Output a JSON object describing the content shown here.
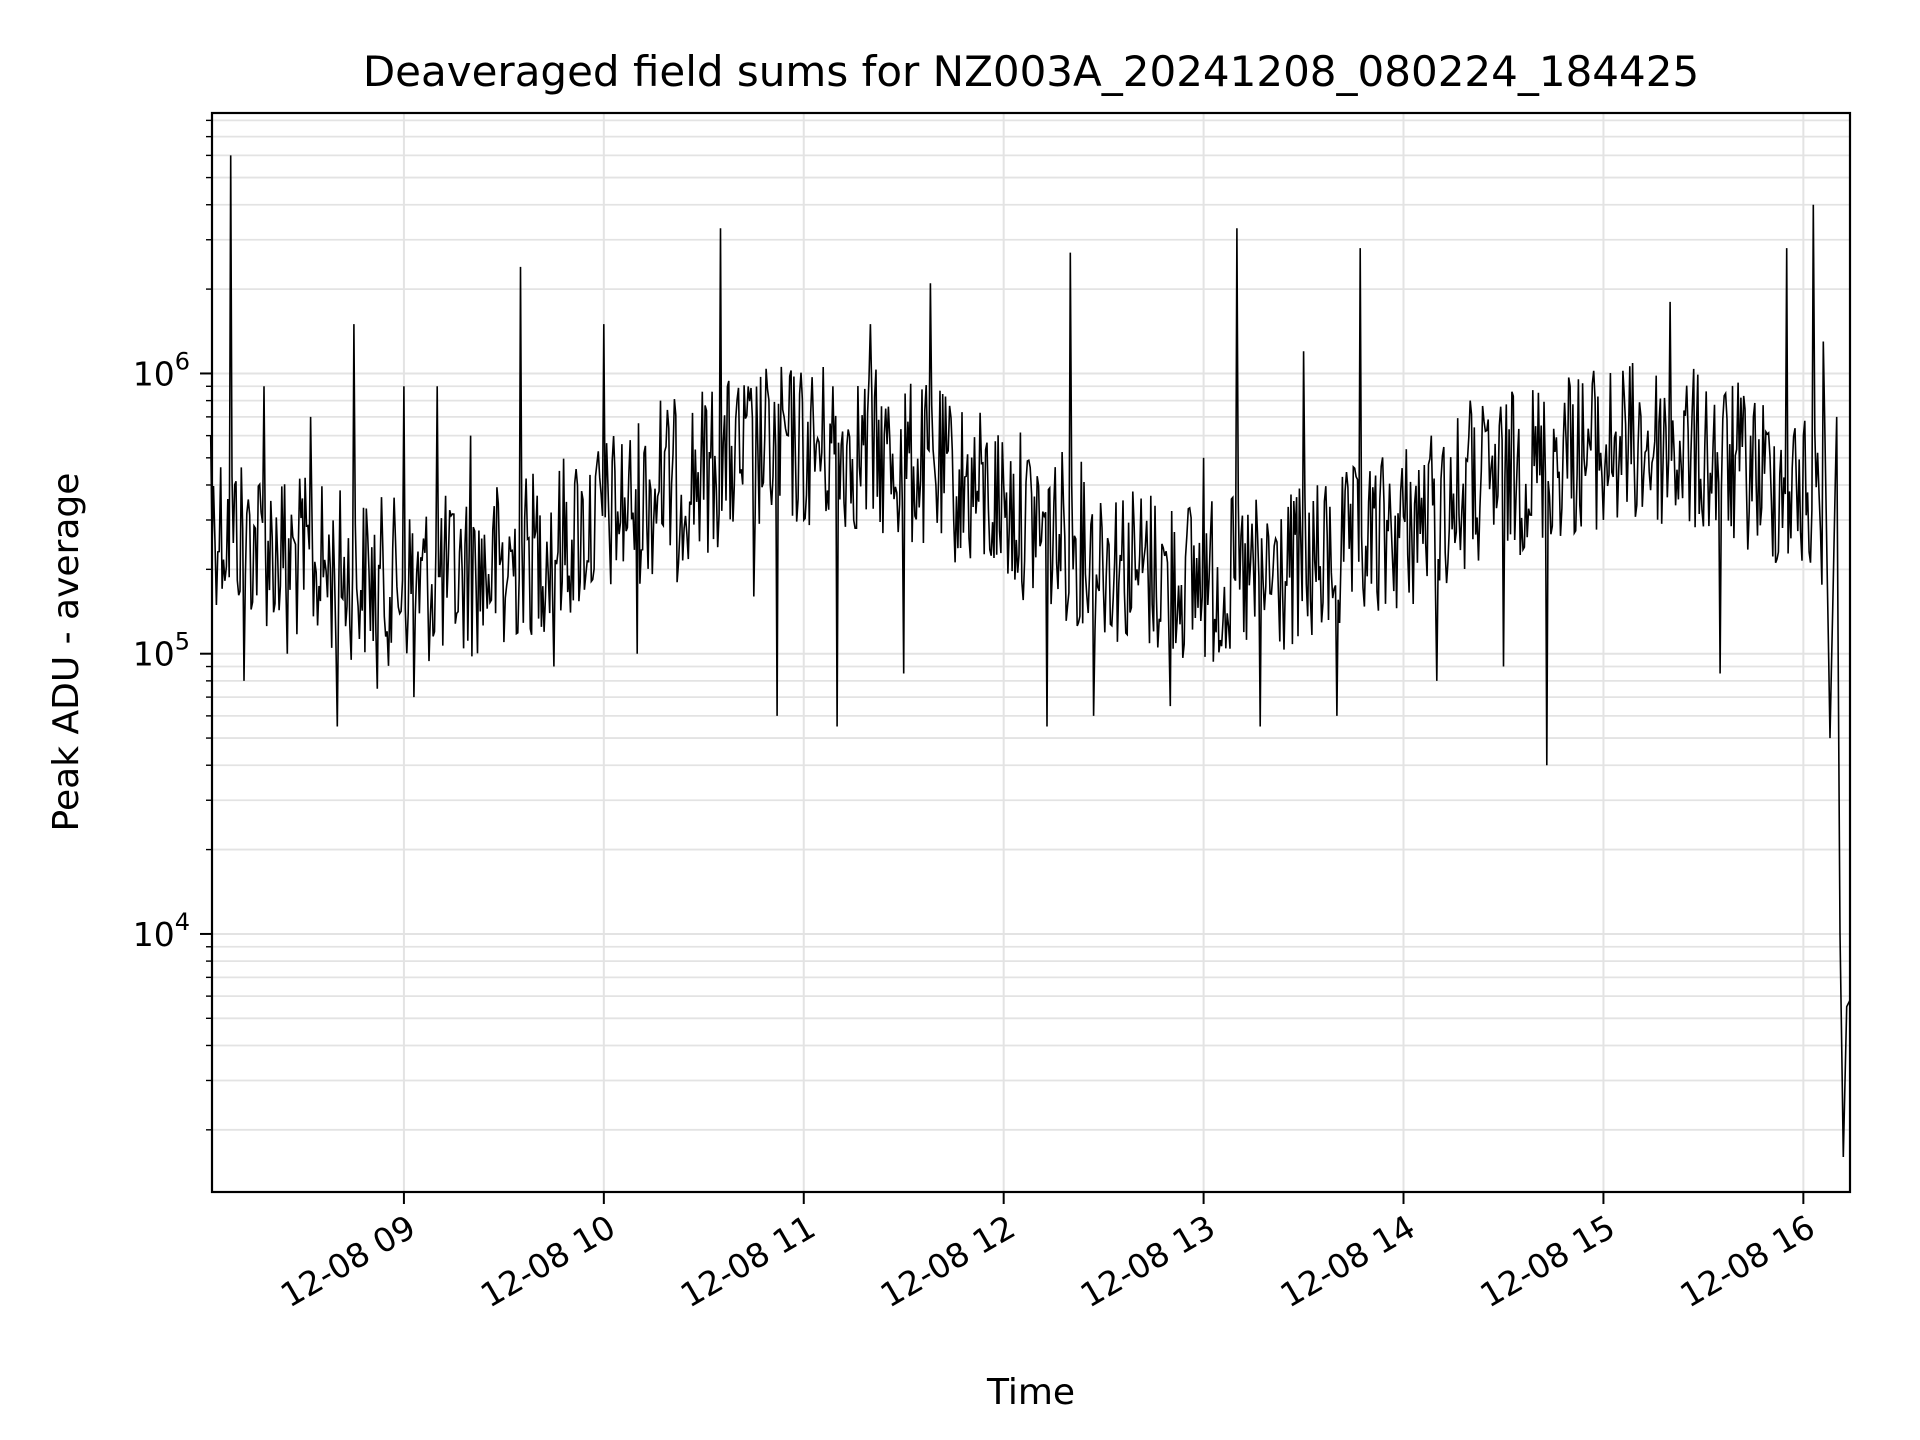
{
  "chart_data": {
    "type": "line",
    "title": "Deaveraged field sums for NZ003A_20241208_080224_184425",
    "xlabel": "Time",
    "ylabel": "Peak ADU - average",
    "y_scale": "log",
    "xlim": [
      "2024-12-08 08:02:24",
      "2024-12-08 16:14:00"
    ],
    "ylim": [
      1200,
      8500000
    ],
    "x_ticks": [
      "2024-12-08 09:00",
      "2024-12-08 10:00",
      "2024-12-08 11:00",
      "2024-12-08 12:00",
      "2024-12-08 13:00",
      "2024-12-08 14:00",
      "2024-12-08 15:00",
      "2024-12-08 16:00"
    ],
    "x_tick_labels": [
      "12-08 09",
      "12-08 10",
      "12-08 11",
      "12-08 12",
      "12-08 13",
      "12-08 14",
      "12-08 15",
      "12-08 16"
    ],
    "y_ticks": [
      10000,
      100000,
      1000000
    ],
    "y_tick_labels": [
      {
        "base": "10",
        "exp": "4"
      },
      {
        "base": "10",
        "exp": "5"
      },
      {
        "base": "10",
        "exp": "6"
      }
    ],
    "grid": true,
    "series": [
      {
        "color": "#000000",
        "x": [
          "2024-12-08 08:02",
          "2024-12-08 08:08",
          "2024-12-08 08:12",
          "2024-12-08 08:18",
          "2024-12-08 08:25",
          "2024-12-08 08:32",
          "2024-12-08 08:40",
          "2024-12-08 08:45",
          "2024-12-08 08:52",
          "2024-12-08 09:00",
          "2024-12-08 09:03",
          "2024-12-08 09:10",
          "2024-12-08 09:20",
          "2024-12-08 09:30",
          "2024-12-08 09:35",
          "2024-12-08 09:45",
          "2024-12-08 10:00",
          "2024-12-08 10:10",
          "2024-12-08 10:17",
          "2024-12-08 10:22",
          "2024-12-08 10:35",
          "2024-12-08 10:45",
          "2024-12-08 10:52",
          "2024-12-08 11:00",
          "2024-12-08 11:10",
          "2024-12-08 11:20",
          "2024-12-08 11:30",
          "2024-12-08 11:38",
          "2024-12-08 11:45",
          "2024-12-08 12:00",
          "2024-12-08 12:13",
          "2024-12-08 12:20",
          "2024-12-08 12:27",
          "2024-12-08 12:40",
          "2024-12-08 12:50",
          "2024-12-08 13:00",
          "2024-12-08 13:10",
          "2024-12-08 13:17",
          "2024-12-08 13:30",
          "2024-12-08 13:40",
          "2024-12-08 13:47",
          "2024-12-08 13:55",
          "2024-12-08 14:10",
          "2024-12-08 14:20",
          "2024-12-08 14:30",
          "2024-12-08 14:43",
          "2024-12-08 14:50",
          "2024-12-08 15:00",
          "2024-12-08 15:20",
          "2024-12-08 15:35",
          "2024-12-08 15:45",
          "2024-12-08 15:55",
          "2024-12-08 16:00",
          "2024-12-08 16:03",
          "2024-12-08 16:06",
          "2024-12-08 16:08",
          "2024-12-08 16:10",
          "2024-12-08 16:11",
          "2024-12-08 16:12",
          "2024-12-08 16:13",
          "2024-12-08 16:14"
        ],
        "y": [
          600000,
          6000000,
          80000,
          900000,
          100000,
          700000,
          55000,
          1500000,
          75000,
          900000,
          70000,
          900000,
          600000,
          110000,
          2400000,
          90000,
          1500000,
          100000,
          800000,
          180000,
          3300000,
          160000,
          60000,
          300000,
          55000,
          1500000,
          85000,
          2100000,
          300000,
          400000,
          55000,
          2700000,
          60000,
          200000,
          65000,
          500000,
          3300000,
          55000,
          1200000,
          60000,
          2800000,
          300000,
          80000,
          800000,
          90000,
          40000,
          900000,
          300000,
          1800000,
          85000,
          700000,
          2800000,
          600000,
          4000000,
          1300000,
          50000,
          700000,
          10000,
          1600,
          5500,
          5800
        ]
      }
    ]
  }
}
